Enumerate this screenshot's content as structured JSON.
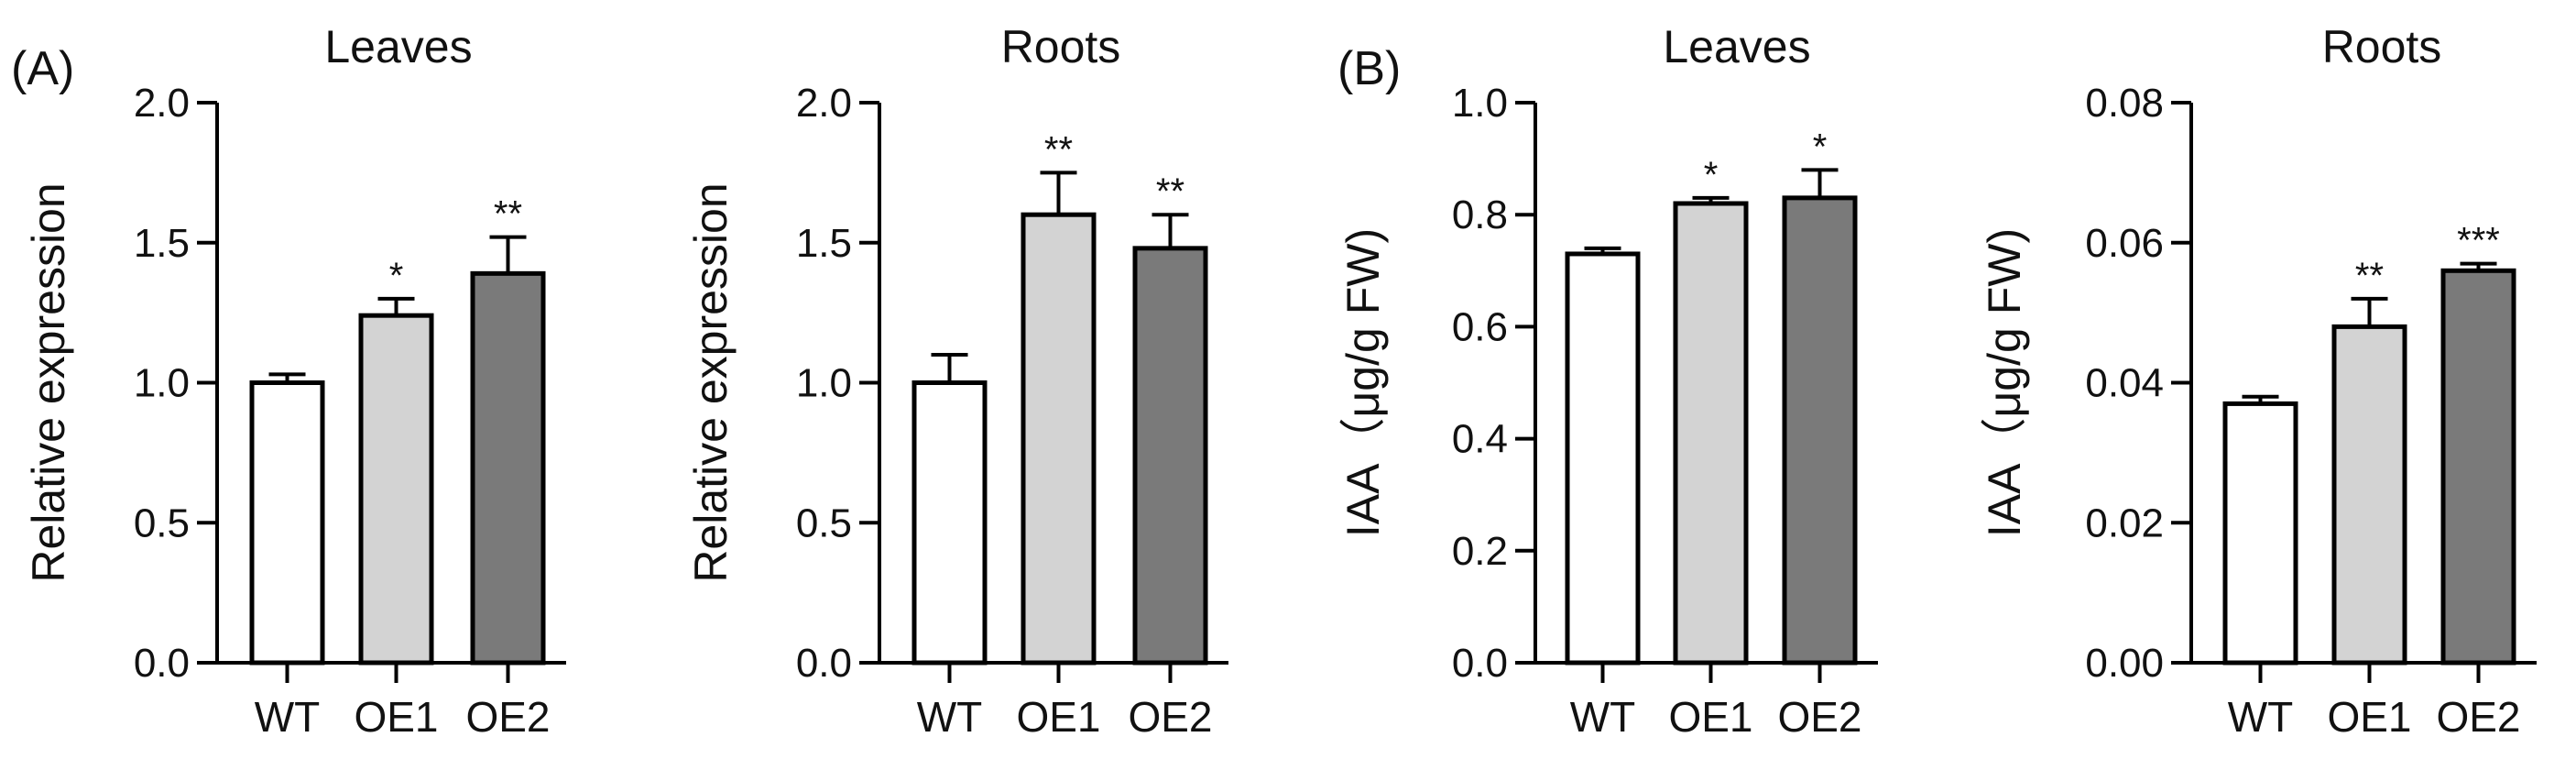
{
  "colors": {
    "WT": "#ffffff",
    "OE1": "#d3d3d3",
    "OE2": "#7a7a7a"
  },
  "chart_data": [
    {
      "type": "bar",
      "panel": "(A)",
      "title": "Leaves",
      "ylabel": "Relative expression",
      "xlabel": "",
      "categories": [
        "WT",
        "OE1",
        "OE2"
      ],
      "values": [
        1.0,
        1.24,
        1.39
      ],
      "errors": [
        0.03,
        0.06,
        0.13
      ],
      "significance": [
        "",
        "*",
        "**"
      ],
      "ylim": [
        0,
        2.0
      ],
      "yticks": [
        "0.0",
        "0.5",
        "1.0",
        "1.5",
        "2.0"
      ]
    },
    {
      "type": "bar",
      "panel": "",
      "title": "Roots",
      "ylabel": "Relative expression",
      "xlabel": "",
      "categories": [
        "WT",
        "OE1",
        "OE2"
      ],
      "values": [
        1.0,
        1.6,
        1.48
      ],
      "errors": [
        0.1,
        0.15,
        0.12
      ],
      "significance": [
        "",
        "**",
        "**"
      ],
      "ylim": [
        0,
        2.0
      ],
      "yticks": [
        "0.0",
        "0.5",
        "1.0",
        "1.5",
        "2.0"
      ]
    },
    {
      "type": "bar",
      "panel": "(B)",
      "title": "Leaves",
      "ylabel": "IAA（μg/g FW)",
      "xlabel": "",
      "categories": [
        "WT",
        "OE1",
        "OE2"
      ],
      "values": [
        0.73,
        0.82,
        0.83
      ],
      "errors": [
        0.01,
        0.01,
        0.05
      ],
      "significance": [
        "",
        "*",
        "*"
      ],
      "ylim": [
        0,
        1.0
      ],
      "yticks": [
        "0.0",
        "0.2",
        "0.4",
        "0.6",
        "0.8",
        "1.0"
      ]
    },
    {
      "type": "bar",
      "panel": "",
      "title": "Roots",
      "ylabel": "IAA（μg/g FW)",
      "xlabel": "",
      "categories": [
        "WT",
        "OE1",
        "OE2"
      ],
      "values": [
        0.037,
        0.048,
        0.056
      ],
      "errors": [
        0.001,
        0.004,
        0.001
      ],
      "significance": [
        "",
        "**",
        "***"
      ],
      "ylim": [
        0,
        0.08
      ],
      "yticks": [
        "0.00",
        "0.02",
        "0.04",
        "0.06",
        "0.08"
      ]
    }
  ]
}
